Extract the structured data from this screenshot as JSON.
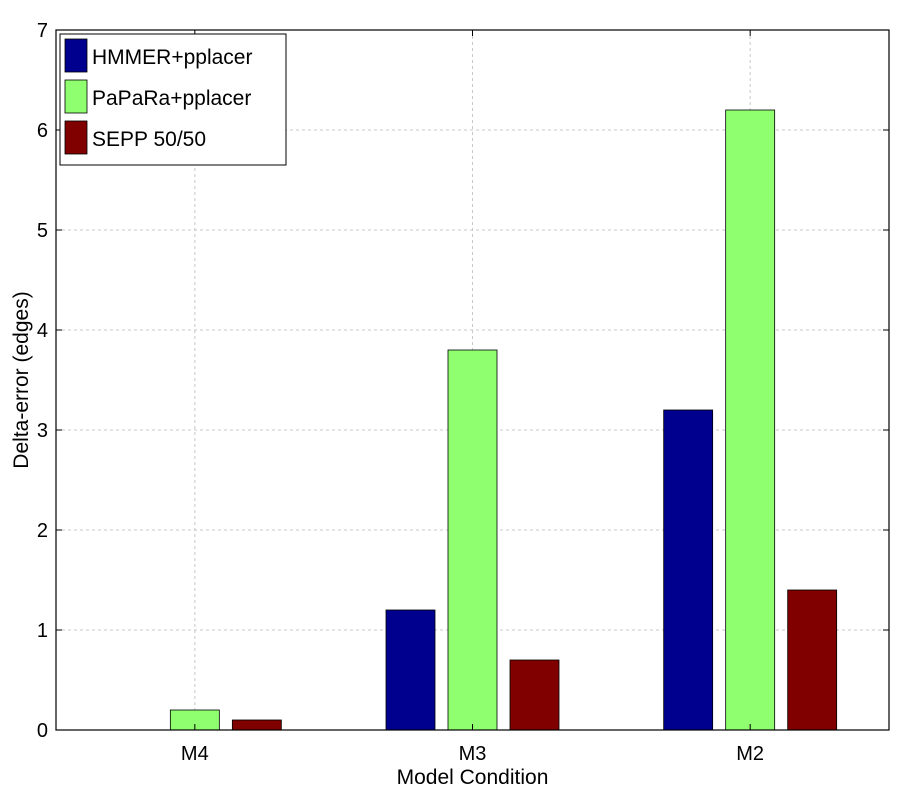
{
  "chart_data": {
    "type": "bar",
    "title": "",
    "xlabel": "Model Condition",
    "ylabel": "Delta-error (edges)",
    "categories": [
      "M4",
      "M3",
      "M2"
    ],
    "ylim": [
      0,
      7
    ],
    "yticks": [
      0,
      1,
      2,
      3,
      4,
      5,
      6,
      7
    ],
    "grid": true,
    "legend_position": "top-left",
    "series": [
      {
        "name": "HMMER+pplacer",
        "color": "#00008f",
        "values": [
          0,
          1.2,
          3.2
        ]
      },
      {
        "name": "PaPaRa+pplacer",
        "color": "#8fff70",
        "values": [
          0.2,
          3.8,
          6.2
        ]
      },
      {
        "name": "SEPP 50/50",
        "color": "#800000",
        "values": [
          0.1,
          0.7,
          1.4
        ]
      }
    ]
  }
}
